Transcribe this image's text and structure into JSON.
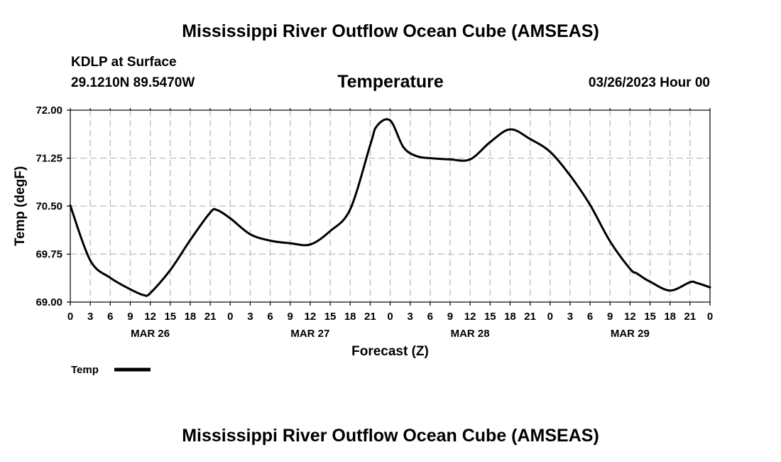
{
  "header": {
    "title": "Mississippi River Outflow Ocean Cube (AMSEAS)",
    "station": "KDLP at Surface",
    "coords": "29.1210N  89.5470W",
    "parameter": "Temperature",
    "datetime": "03/26/2023 Hour 00"
  },
  "footer": {
    "title": "Mississippi River Outflow Ocean Cube (AMSEAS)"
  },
  "legend": {
    "label": "Temp",
    "placement": "bottom-left"
  },
  "chart_data": {
    "type": "line",
    "title": "Temperature",
    "xlabel": "Forecast (Z)",
    "ylabel": "Temp (degF)",
    "ylim": [
      69.0,
      72.0
    ],
    "yticks": [
      "69.00",
      "69.75",
      "70.50",
      "71.25",
      "72.00"
    ],
    "xlim": [
      0,
      96
    ],
    "xticks": [
      "0",
      "3",
      "6",
      "9",
      "12",
      "15",
      "18",
      "21",
      "0",
      "3",
      "6",
      "9",
      "12",
      "15",
      "18",
      "21",
      "0",
      "3",
      "6",
      "9",
      "12",
      "15",
      "18",
      "21",
      "0",
      "3",
      "6",
      "9",
      "12",
      "15",
      "18",
      "21",
      "0"
    ],
    "day_labels": [
      "MAR 26",
      "MAR 27",
      "MAR 28",
      "MAR 29"
    ],
    "grid": true,
    "line_color": "#000000",
    "series": [
      {
        "name": "Temp",
        "x": [
          0,
          3,
          6,
          9,
          11,
          12,
          15,
          18,
          21,
          22,
          24,
          27,
          30,
          33,
          36,
          39,
          42,
          45,
          46,
          48,
          50,
          52,
          54,
          57,
          60,
          63,
          66,
          69,
          72,
          75,
          78,
          81,
          84,
          85,
          86,
          87,
          90,
          93,
          94,
          96
        ],
        "y": [
          70.51,
          69.65,
          69.38,
          69.2,
          69.11,
          69.14,
          69.5,
          69.97,
          70.4,
          70.44,
          70.31,
          70.06,
          69.96,
          69.92,
          69.9,
          70.11,
          70.45,
          71.45,
          71.75,
          71.84,
          71.42,
          71.28,
          71.25,
          71.23,
          71.23,
          71.5,
          71.7,
          71.55,
          71.35,
          70.98,
          70.52,
          69.95,
          69.52,
          69.45,
          69.38,
          69.32,
          69.18,
          69.31,
          69.3,
          69.23
        ]
      }
    ]
  }
}
